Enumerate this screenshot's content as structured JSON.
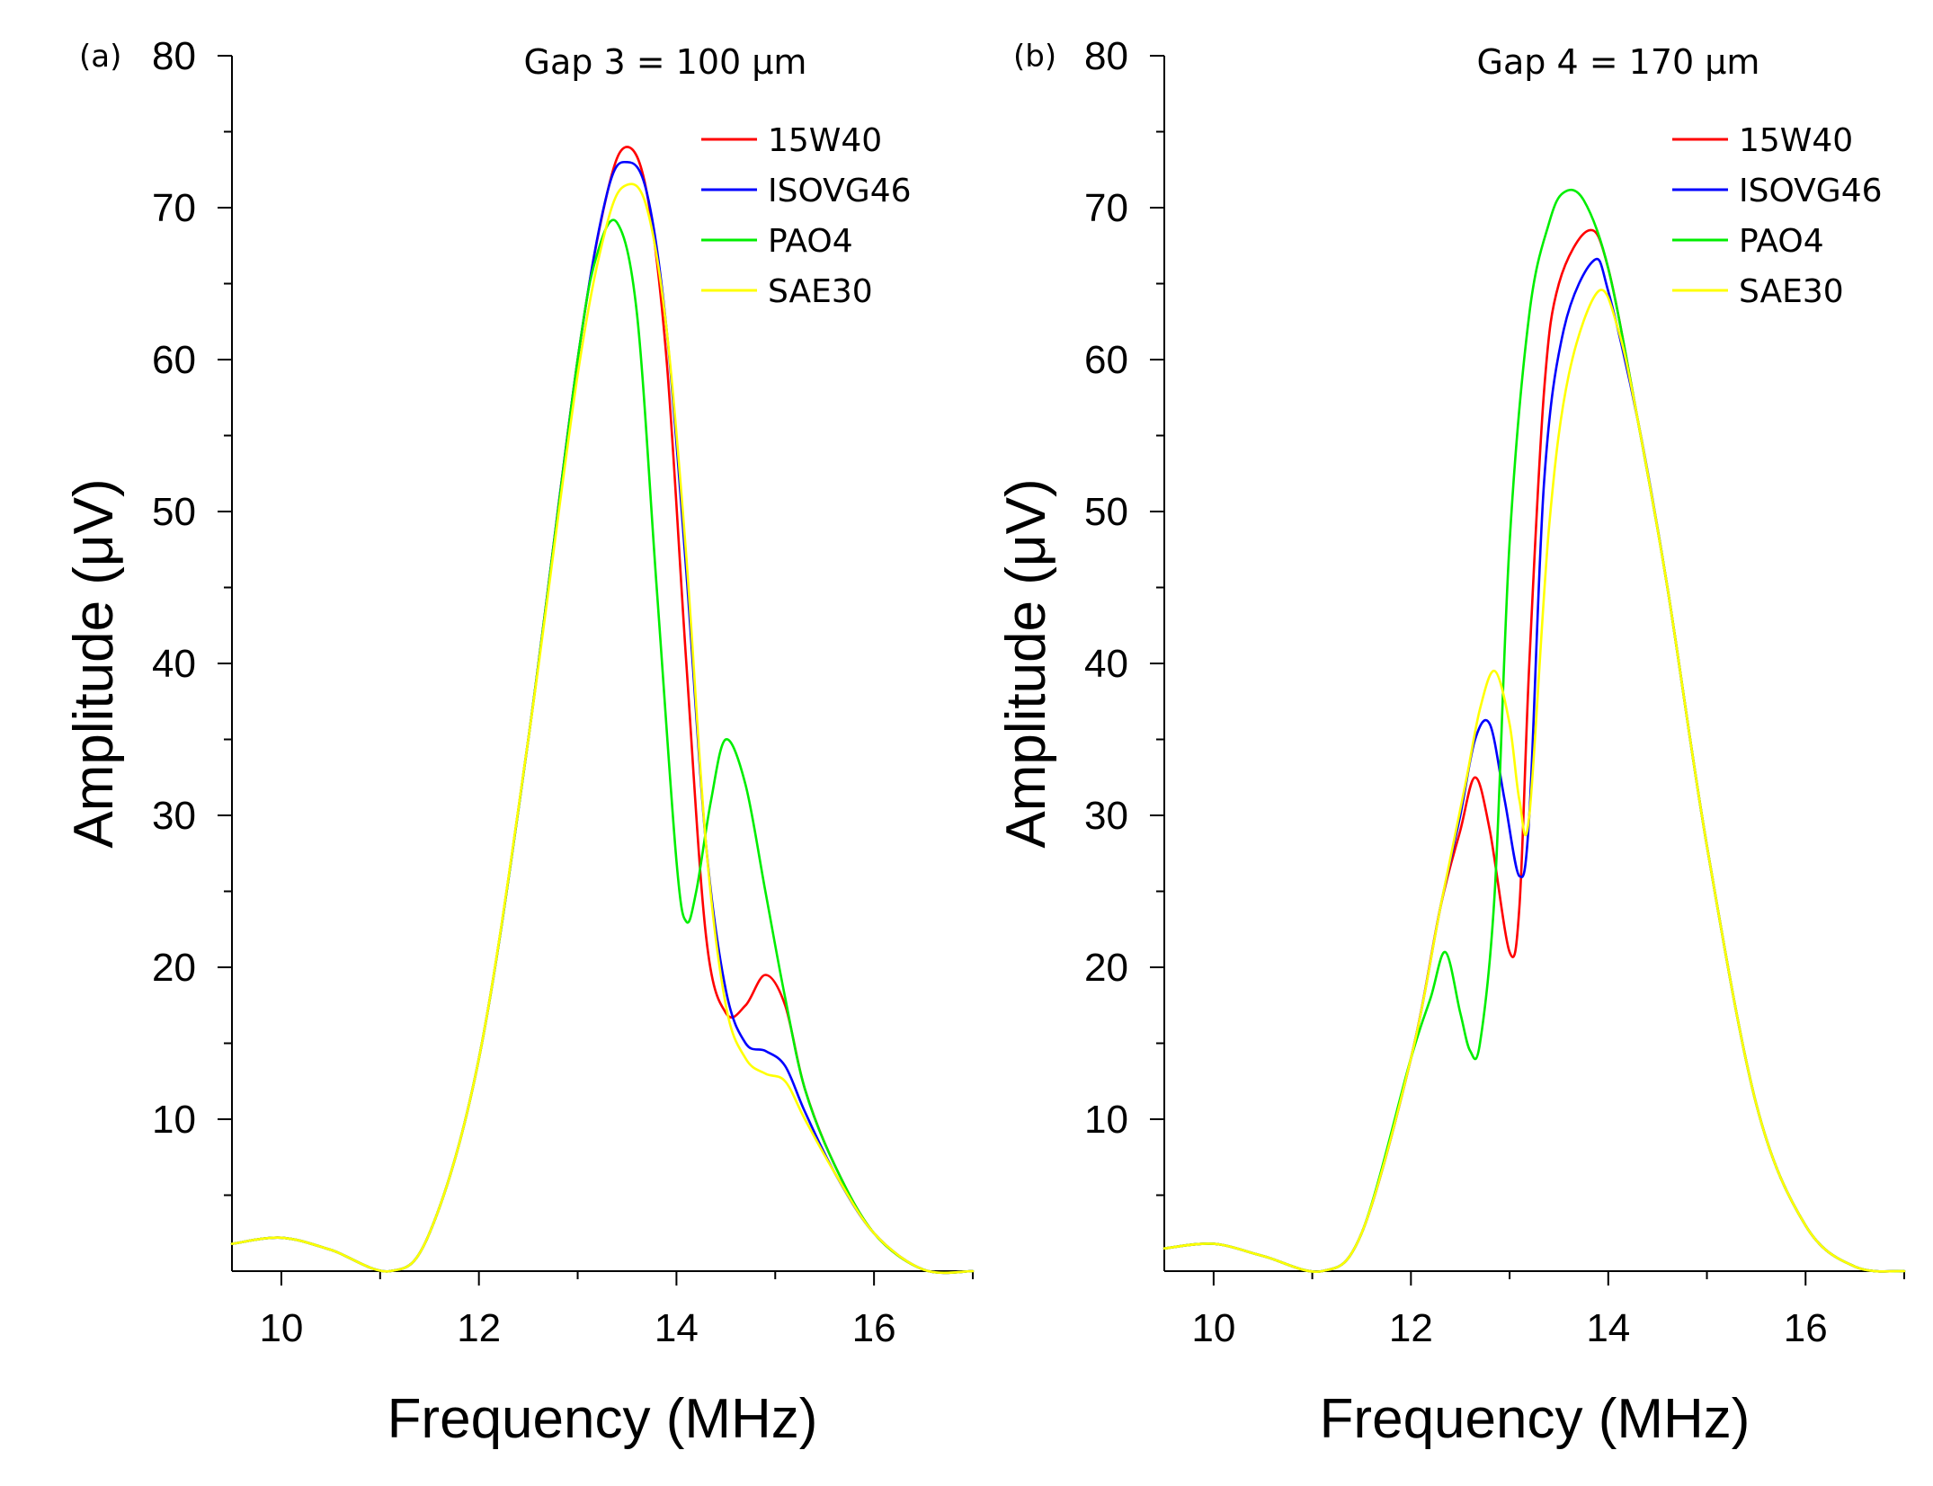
{
  "chart_data": [
    {
      "type": "line",
      "panel_label": "(a)",
      "title": "Gap 3 = 100 μm",
      "xlabel": "Frequency (MHz)",
      "ylabel": "Amplitude (μV)",
      "xlim": [
        9.5,
        17
      ],
      "ylim": [
        0,
        80
      ],
      "xticks": [
        10,
        12,
        14,
        16
      ],
      "yticks": [
        10,
        20,
        30,
        40,
        50,
        60,
        70,
        80
      ],
      "grid": false,
      "legend": "top-right",
      "series": [
        {
          "name": "15W40",
          "color": "#ff0000",
          "x": [
            9.5,
            10.0,
            10.5,
            11.1,
            11.5,
            12.0,
            12.5,
            13.0,
            13.3,
            13.5,
            13.7,
            13.9,
            14.1,
            14.3,
            14.5,
            14.7,
            14.9,
            15.1,
            15.3,
            15.6,
            16.0,
            16.5,
            17.0
          ],
          "y": [
            1.8,
            2.2,
            1.4,
            0.0,
            2.5,
            14.0,
            35.0,
            60.0,
            71.0,
            74.0,
            71.0,
            60.0,
            40.0,
            22.0,
            17.0,
            17.5,
            19.5,
            17.5,
            12.0,
            7.0,
            2.5,
            0.1,
            0.0
          ]
        },
        {
          "name": "ISOVG46",
          "color": "#0000ff",
          "x": [
            9.5,
            10.0,
            10.5,
            11.1,
            11.5,
            12.0,
            12.5,
            13.0,
            13.3,
            13.5,
            13.7,
            13.9,
            14.1,
            14.3,
            14.5,
            14.7,
            14.9,
            15.1,
            15.3,
            15.6,
            16.0,
            16.5,
            17.0
          ],
          "y": [
            1.8,
            2.2,
            1.4,
            0.0,
            2.5,
            14.0,
            35.0,
            60.0,
            71.0,
            73.0,
            71.0,
            62.0,
            46.0,
            28.0,
            18.5,
            15.0,
            14.5,
            13.5,
            10.5,
            6.5,
            2.5,
            0.1,
            0.0
          ]
        },
        {
          "name": "PAO4",
          "color": "#00ee00",
          "x": [
            9.5,
            10.0,
            10.5,
            11.1,
            11.5,
            12.0,
            12.5,
            13.0,
            13.2,
            13.4,
            13.6,
            13.8,
            14.0,
            14.1,
            14.2,
            14.35,
            14.5,
            14.7,
            14.9,
            15.1,
            15.3,
            15.6,
            16.0,
            16.5,
            17.0
          ],
          "y": [
            1.8,
            2.2,
            1.4,
            0.0,
            2.5,
            14.0,
            35.0,
            60.0,
            67.0,
            69.0,
            63.0,
            45.0,
            27.0,
            23.0,
            25.0,
            31.0,
            35.0,
            32.0,
            25.0,
            18.0,
            12.0,
            7.0,
            2.5,
            0.1,
            0.0
          ]
        },
        {
          "name": "SAE30",
          "color": "#ffff00",
          "x": [
            9.5,
            10.0,
            10.5,
            11.1,
            11.5,
            12.0,
            12.5,
            13.0,
            13.3,
            13.5,
            13.7,
            13.9,
            14.1,
            14.3,
            14.5,
            14.7,
            14.9,
            15.1,
            15.3,
            15.6,
            16.0,
            16.5,
            17.0
          ],
          "y": [
            1.8,
            2.2,
            1.4,
            0.0,
            2.5,
            14.0,
            35.0,
            59.0,
            69.0,
            71.5,
            70.0,
            62.0,
            47.0,
            28.0,
            17.5,
            14.0,
            13.0,
            12.5,
            10.0,
            6.5,
            2.5,
            0.1,
            0.0
          ]
        }
      ]
    },
    {
      "type": "line",
      "panel_label": "(b)",
      "title": "Gap 4 = 170 μm",
      "xlabel": "Frequency (MHz)",
      "ylabel": "Amplitude (μV)",
      "xlim": [
        9.5,
        17
      ],
      "ylim": [
        0,
        80
      ],
      "xticks": [
        10,
        12,
        14,
        16
      ],
      "yticks": [
        10,
        20,
        30,
        40,
        50,
        60,
        70,
        80
      ],
      "grid": false,
      "legend": "top-right",
      "series": [
        {
          "name": "15W40",
          "color": "#ff0000",
          "x": [
            9.5,
            10.0,
            10.5,
            11.1,
            11.5,
            12.0,
            12.3,
            12.5,
            12.65,
            12.8,
            13.0,
            13.1,
            13.2,
            13.35,
            13.5,
            13.8,
            14.0,
            14.3,
            14.6,
            15.0,
            15.5,
            16.0,
            16.5,
            17.0
          ],
          "y": [
            1.5,
            1.8,
            1.0,
            0.0,
            2.5,
            14.0,
            24.0,
            29.0,
            32.5,
            29.0,
            21.0,
            24.0,
            40.0,
            58.0,
            65.0,
            68.5,
            66.0,
            56.0,
            45.0,
            28.0,
            11.0,
            3.0,
            0.3,
            0.0
          ]
        },
        {
          "name": "ISOVG46",
          "color": "#0000ff",
          "x": [
            9.5,
            10.0,
            10.5,
            11.1,
            11.5,
            12.0,
            12.3,
            12.5,
            12.65,
            12.8,
            12.95,
            13.1,
            13.2,
            13.35,
            13.55,
            13.85,
            14.0,
            14.3,
            14.6,
            15.0,
            15.5,
            16.0,
            16.5,
            17.0
          ],
          "y": [
            1.5,
            1.8,
            1.0,
            0.0,
            2.5,
            14.0,
            24.0,
            30.0,
            35.0,
            36.0,
            31.0,
            26.0,
            30.0,
            52.0,
            62.0,
            66.5,
            64.5,
            56.0,
            45.0,
            28.0,
            11.0,
            3.0,
            0.3,
            0.0
          ]
        },
        {
          "name": "PAO4",
          "color": "#00ee00",
          "x": [
            9.5,
            10.0,
            10.5,
            11.1,
            11.5,
            12.0,
            12.2,
            12.35,
            12.5,
            12.6,
            12.7,
            12.85,
            13.0,
            13.2,
            13.4,
            13.55,
            13.75,
            14.0,
            14.3,
            14.6,
            15.0,
            15.5,
            16.0,
            16.5,
            17.0
          ],
          "y": [
            1.5,
            1.8,
            1.0,
            0.0,
            2.5,
            14.0,
            18.0,
            21.0,
            17.0,
            14.5,
            15.0,
            25.0,
            48.0,
            63.0,
            69.0,
            71.0,
            70.5,
            66.0,
            56.0,
            45.0,
            28.0,
            11.0,
            3.0,
            0.3,
            0.0
          ]
        },
        {
          "name": "SAE30",
          "color": "#ffff00",
          "x": [
            9.5,
            10.0,
            10.5,
            11.1,
            11.5,
            12.0,
            12.3,
            12.55,
            12.7,
            12.85,
            13.0,
            13.1,
            13.2,
            13.4,
            13.6,
            13.9,
            14.1,
            14.3,
            14.6,
            15.0,
            15.5,
            16.0,
            16.5,
            17.0
          ],
          "y": [
            1.5,
            1.8,
            1.0,
            0.0,
            2.5,
            14.0,
            24.0,
            32.0,
            37.0,
            39.5,
            36.0,
            31.0,
            30.0,
            49.0,
            59.0,
            64.5,
            62.0,
            56.0,
            45.0,
            28.0,
            11.0,
            3.0,
            0.3,
            0.0
          ]
        }
      ]
    }
  ]
}
